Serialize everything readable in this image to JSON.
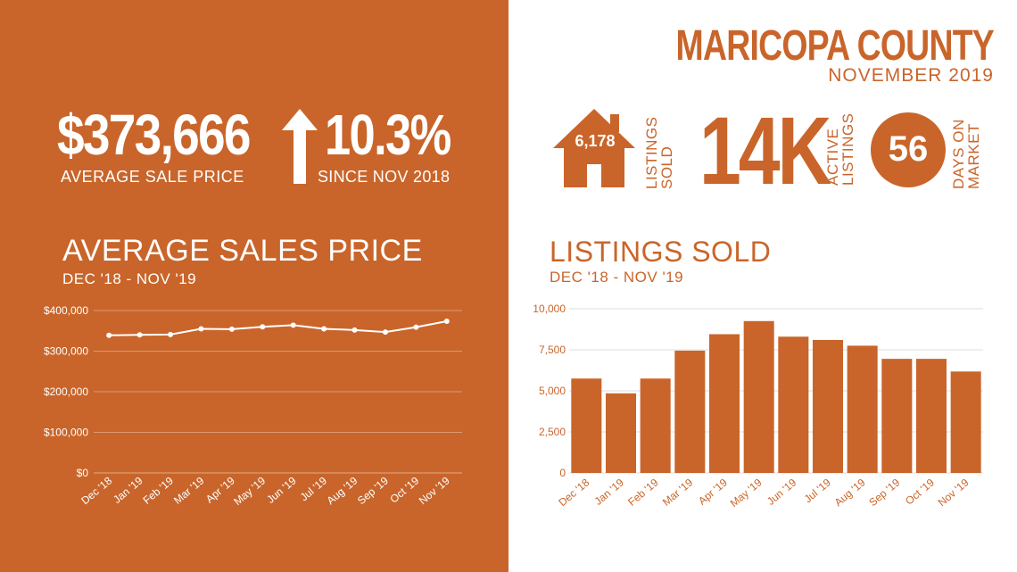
{
  "headline": {
    "average_sale_price": "$373,666",
    "average_sale_price_label": "AVERAGE  SALE PRICE",
    "change_pct": "10.3%",
    "change_label": "SINCE NOV 2018",
    "change_icon": "arrow-up-icon"
  },
  "header": {
    "county": "MARICOPA COUNTY",
    "month": "NOVEMBER 2019"
  },
  "stats": {
    "listings_sold_value": "6,178",
    "listings_sold_label": [
      "LISTINGS",
      "SOLD"
    ],
    "listings_sold_icon": "house-icon",
    "active_listings_value": "14K",
    "active_listings_label": [
      "ACTIVE",
      "LISTINGS"
    ],
    "days_on_market_value": "56",
    "days_on_market_label": [
      "DAYS ON",
      "MARKET"
    ]
  },
  "colors": {
    "accent": "#c9652a",
    "white": "#ffffff"
  },
  "chart_data": [
    {
      "type": "line",
      "title": "AVERAGE SALES PRICE",
      "subtitle": "DEC '18 - NOV '19",
      "categories": [
        "Dec '18",
        "Jan '19",
        "Feb '19",
        "Mar '19",
        "Apr '19",
        "May '19",
        "Jun '19",
        "Jul '19",
        "Aug '19",
        "Sep '19",
        "Oct '19",
        "Nov '19"
      ],
      "values": [
        339000,
        340000,
        341000,
        355000,
        354000,
        360000,
        364000,
        355000,
        352000,
        347000,
        359000,
        373666
      ],
      "ylim": [
        0,
        400000
      ],
      "yticks": [
        0,
        100000,
        200000,
        300000,
        400000
      ],
      "ytick_labels": [
        "$0",
        "$100,000",
        "$200,000",
        "$300,000",
        "$400,000"
      ],
      "grid": true
    },
    {
      "type": "bar",
      "title": "LISTINGS SOLD",
      "subtitle": "DEC '18 - NOV '19",
      "categories": [
        "Dec '18",
        "Jan '19",
        "Feb '19",
        "Mar '19",
        "Apr '19",
        "May '19",
        "Jun '19",
        "Jul '19",
        "Aug '19",
        "Sep '19",
        "Oct '19",
        "Nov '19"
      ],
      "values": [
        5750,
        4850,
        5750,
        7450,
        8450,
        9250,
        8300,
        8100,
        7750,
        6950,
        6950,
        6178
      ],
      "ylim": [
        0,
        10000
      ],
      "yticks": [
        0,
        2500,
        5000,
        7500,
        10000
      ],
      "ytick_labels": [
        "0",
        "2,500",
        "5,000",
        "7,500",
        "10,000"
      ],
      "grid": true
    }
  ]
}
